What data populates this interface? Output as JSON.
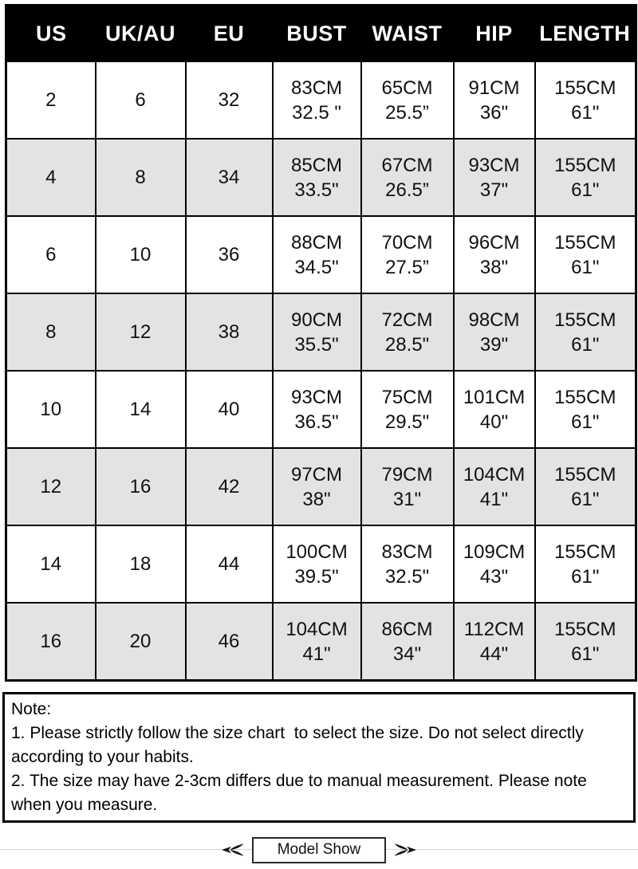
{
  "chart_data": {
    "type": "table",
    "columns": [
      "US",
      "UK/AU",
      "EU",
      "BUST",
      "WAIST",
      "HIP",
      "LENGTH"
    ],
    "rows": [
      [
        [
          "2"
        ],
        [
          "6"
        ],
        [
          "32"
        ],
        [
          "83CM",
          "32.5 \""
        ],
        [
          "65CM",
          "25.5”"
        ],
        [
          "91CM",
          "36\""
        ],
        [
          "155CM",
          "61\""
        ]
      ],
      [
        [
          "4"
        ],
        [
          "8"
        ],
        [
          "34"
        ],
        [
          "85CM",
          "33.5\""
        ],
        [
          "67CM",
          "26.5”"
        ],
        [
          "93CM",
          "37\""
        ],
        [
          "155CM",
          "61\""
        ]
      ],
      [
        [
          "6"
        ],
        [
          "10"
        ],
        [
          "36"
        ],
        [
          "88CM",
          "34.5\""
        ],
        [
          "70CM",
          "27.5”"
        ],
        [
          "96CM",
          "38\""
        ],
        [
          "155CM",
          "61\""
        ]
      ],
      [
        [
          "8"
        ],
        [
          "12"
        ],
        [
          "38"
        ],
        [
          "90CM",
          "35.5\""
        ],
        [
          "72CM",
          "28.5\""
        ],
        [
          "98CM",
          "39\""
        ],
        [
          "155CM",
          "61\""
        ]
      ],
      [
        [
          "10"
        ],
        [
          "14"
        ],
        [
          "40"
        ],
        [
          "93CM",
          "36.5\""
        ],
        [
          "75CM",
          "29.5\""
        ],
        [
          "101CM",
          "40\""
        ],
        [
          "155CM",
          "61\""
        ]
      ],
      [
        [
          "12"
        ],
        [
          "16"
        ],
        [
          "42"
        ],
        [
          "97CM",
          "38\""
        ],
        [
          "79CM",
          "31\""
        ],
        [
          "104CM",
          "41\""
        ],
        [
          "155CM",
          "61\""
        ]
      ],
      [
        [
          "14"
        ],
        [
          "18"
        ],
        [
          "44"
        ],
        [
          "100CM",
          "39.5\""
        ],
        [
          "83CM",
          "32.5\""
        ],
        [
          "109CM",
          "43\""
        ],
        [
          "155CM",
          "61\""
        ]
      ],
      [
        [
          "16"
        ],
        [
          "20"
        ],
        [
          "46"
        ],
        [
          "104CM",
          "41\""
        ],
        [
          "86CM",
          "34\""
        ],
        [
          "112CM",
          "44\""
        ],
        [
          "155CM",
          "61\""
        ]
      ]
    ],
    "layout_hints": {
      "header_style": "white-on-black",
      "row_striping": "even rows light gray",
      "grid": true
    }
  },
  "note": {
    "title": "Note:",
    "items": [
      "1. Please strictly follow the size chart  to select the size. Do not select directly according to your habits.",
      "2. The size may have 2-3cm differs due to manual measurement. Please note when you measure."
    ]
  },
  "footer": {
    "model_show_label": "Model Show"
  },
  "colors": {
    "header_bg": "#000000",
    "header_text": "#ffffff",
    "row_alt_bg": "#e3e3e3",
    "table_border": "#000000",
    "divider_line": "#d4d4d4"
  }
}
